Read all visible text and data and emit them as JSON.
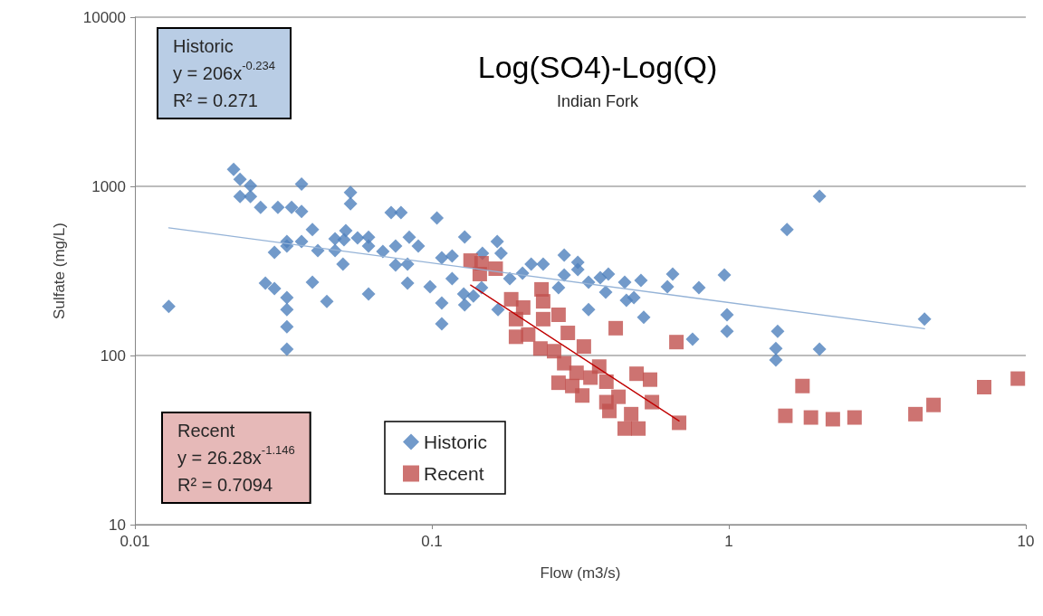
{
  "chart_data": {
    "type": "scatter",
    "title": "Log(SO4)-Log(Q)",
    "subtitle": "Indian Fork",
    "xlabel": "Flow (m3/s)",
    "ylabel": "Sulfate (mg/L)",
    "log": "xy",
    "grid": "y",
    "legend": "bottom left",
    "xlim": [
      0.01,
      10
    ],
    "xticks": [
      0.01,
      0.1,
      1,
      10
    ],
    "ylim": [
      10,
      10000
    ],
    "yticks": [
      10,
      100,
      1000,
      10000
    ],
    "annotations": [
      "Historic\ny = 206x$^{-0.234}$\nR² = 0.271",
      "Recent\ny = 26.28x$^{-1.146}$\nR² = 0.7094"
    ],
    "series": [
      {
        "name": "Historic",
        "color": "#4f81bd",
        "marker": "diamond",
        "x": [
          0.013,
          0.0215,
          0.0226,
          0.0245,
          0.0226,
          0.0245,
          0.0265,
          0.0364,
          0.0532,
          0.0532,
          0.0303,
          0.0337,
          0.0364,
          0.0396,
          0.0325,
          0.0325,
          0.0364,
          0.0295,
          0.0413,
          0.0472,
          0.0513,
          0.0506,
          0.0562,
          0.0612,
          0.0612,
          0.0472,
          0.0502,
          0.0684,
          0.0729,
          0.0787,
          0.0755,
          0.0839,
          0.09,
          0.0755,
          0.0828,
          0.0828,
          0.0986,
          0.0275,
          0.0295,
          0.0325,
          0.0396,
          0.0443,
          0.0612,
          0.0325,
          0.0325,
          0.0325,
          0.104,
          0.129,
          0.166,
          0.171,
          0.108,
          0.117,
          0.148,
          0.117,
          0.108,
          0.108,
          0.128,
          0.138,
          0.147,
          0.129,
          0.167,
          0.183,
          0.202,
          0.216,
          0.237,
          0.279,
          0.31,
          0.31,
          0.279,
          0.267,
          0.337,
          0.369,
          0.393,
          0.385,
          0.446,
          0.506,
          0.452,
          0.479,
          0.337,
          0.517,
          0.647,
          0.621,
          0.793,
          0.966,
          0.986,
          0.986,
          0.755,
          2.02,
          1.57,
          1.46,
          1.44,
          1.44,
          2.02,
          4.56
        ],
        "values": [
          195,
          1260,
          1100,
          1010,
          870,
          870,
          750,
          1030,
          920,
          790,
          750,
          750,
          710,
          555,
          472,
          444,
          472,
          407,
          417,
          490,
          547,
          483,
          495,
          501,
          444,
          417,
          347,
          412,
          700,
          700,
          444,
          501,
          444,
          343,
          347,
          268,
          255,
          268,
          249,
          220,
          271,
          209,
          231,
          187,
          148,
          109,
          650,
          502,
          472,
          402,
          378,
          387,
          402,
          285,
          204,
          154,
          231,
          225,
          252,
          199,
          187,
          285,
          307,
          347,
          347,
          392,
          356,
          322,
          299,
          252,
          271,
          288,
          303,
          237,
          271,
          278,
          212,
          220,
          187,
          168,
          303,
          255,
          252,
          299,
          174,
          139,
          125,
          873,
          555,
          139,
          110,
          94,
          109,
          164
        ]
      },
      {
        "name": "Recent",
        "color": "#c0504d",
        "marker": "square",
        "x": [
          0.135,
          0.147,
          0.164,
          0.145,
          0.234,
          0.185,
          0.203,
          0.237,
          0.267,
          0.192,
          0.237,
          0.192,
          0.211,
          0.287,
          0.416,
          0.325,
          0.232,
          0.258,
          0.279,
          0.366,
          0.307,
          0.342,
          0.267,
          0.387,
          0.489,
          0.543,
          0.297,
          0.321,
          0.387,
          0.425,
          0.551,
          0.396,
          0.469,
          0.446,
          0.496,
          0.666,
          0.68,
          1.77,
          1.55,
          1.89,
          2.24,
          2.65,
          4.25,
          4.89,
          7.24,
          9.4
        ],
        "values": [
          364,
          351,
          326,
          303,
          246,
          215,
          192,
          209,
          174,
          164,
          164,
          129,
          133,
          136,
          145,
          113,
          110,
          106,
          90,
          86,
          79,
          74,
          69,
          70,
          78,
          72,
          66,
          58,
          53,
          57,
          53,
          47,
          45,
          37,
          37,
          120,
          40,
          66,
          44,
          43,
          42,
          43,
          45,
          51,
          65,
          73
        ]
      },
      {
        "type": "line",
        "color": "#95b3d7",
        "marker": "none",
        "line_style": "solid",
        "x": [
          0.013,
          4.56
        ],
        "values": [
          569,
          144
        ]
      },
      {
        "type": "line",
        "color": "#c00000",
        "marker": "none",
        "line_style": "solid",
        "x": [
          0.135,
          0.68
        ],
        "values": [
          261,
          41
        ]
      }
    ]
  }
}
